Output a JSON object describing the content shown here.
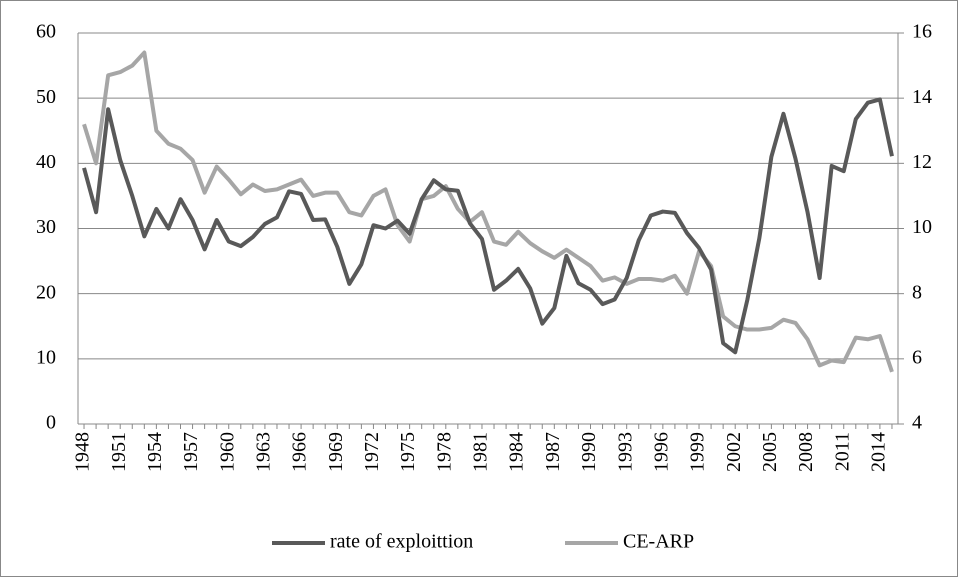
{
  "chart_data": {
    "type": "line",
    "categories": [
      "1948",
      null,
      null,
      "1951",
      null,
      null,
      "1954",
      null,
      null,
      "1957",
      null,
      null,
      "1960",
      null,
      null,
      "1963",
      null,
      null,
      "1966",
      null,
      null,
      "1969",
      null,
      null,
      "1972",
      null,
      null,
      "1975",
      null,
      null,
      "1978",
      null,
      null,
      "1981",
      null,
      null,
      "1984",
      null,
      null,
      "1987",
      null,
      null,
      "1990",
      null,
      null,
      "1993",
      null,
      null,
      "1996",
      null,
      null,
      "1999",
      null,
      null,
      "2002",
      null,
      null,
      "2005",
      null,
      null,
      "2008",
      null,
      null,
      "2011",
      null,
      null,
      "2014",
      null
    ],
    "series": [
      {
        "name": "rate of exploittion",
        "color": "#595959",
        "values": [
          39.3,
          32.5,
          48.3,
          40.5,
          35,
          28.8,
          33,
          30,
          34.5,
          31.3,
          26.8,
          31.3,
          28,
          27.3,
          28.7,
          30.7,
          31.7,
          35.7,
          35.3,
          31.3,
          31.4,
          27.2,
          21.5,
          24.5,
          30.5,
          30,
          31.2,
          29.2,
          34.5,
          37.4,
          36,
          35.8,
          30.8,
          28.4,
          20.6,
          22,
          23.8,
          20.8,
          15.4,
          17.8,
          25.8,
          21.6,
          20.6,
          18.4,
          19.1,
          22.4,
          28.2,
          32,
          32.6,
          32.4,
          29.3,
          27,
          23.7,
          12.4,
          11,
          19,
          28.5,
          41,
          47.6,
          40.7,
          32.5,
          22.4,
          39.6,
          38.8,
          46.8,
          49.3,
          49.8,
          41.1
        ]
      },
      {
        "name": "CE-ARP",
        "color": "#a6a6a6",
        "axis": "y2",
        "values": [
          13.2,
          12,
          14.7,
          14.8,
          15,
          15.4,
          13,
          12.6,
          12.45,
          12.1,
          11.1,
          11.9,
          11.5,
          11.05,
          11.35,
          11.15,
          11.2,
          11.35,
          11.5,
          11,
          11.1,
          11.1,
          10.5,
          10.4,
          11,
          11.2,
          10.1,
          9.6,
          10.9,
          11,
          11.3,
          10.6,
          10.2,
          10.5,
          9.6,
          9.5,
          9.9,
          9.55,
          9.3,
          9.1,
          9.35,
          9.1,
          8.85,
          8.4,
          8.5,
          8.3,
          8.45,
          8.45,
          8.4,
          8.55,
          8,
          9.3,
          8.85,
          7.3,
          7,
          6.9,
          6.9,
          6.95,
          7.2,
          7.1,
          6.6,
          5.8,
          5.95,
          5.9,
          6.65,
          6.6,
          6.7,
          5.6
        ]
      }
    ],
    "ylim": [
      0,
      60
    ],
    "yticks": [
      0,
      10,
      20,
      30,
      40,
      50,
      60
    ],
    "y2lim": [
      4,
      16
    ],
    "y2ticks": [
      4,
      6,
      8,
      10,
      12,
      14,
      16
    ],
    "grid": true
  }
}
